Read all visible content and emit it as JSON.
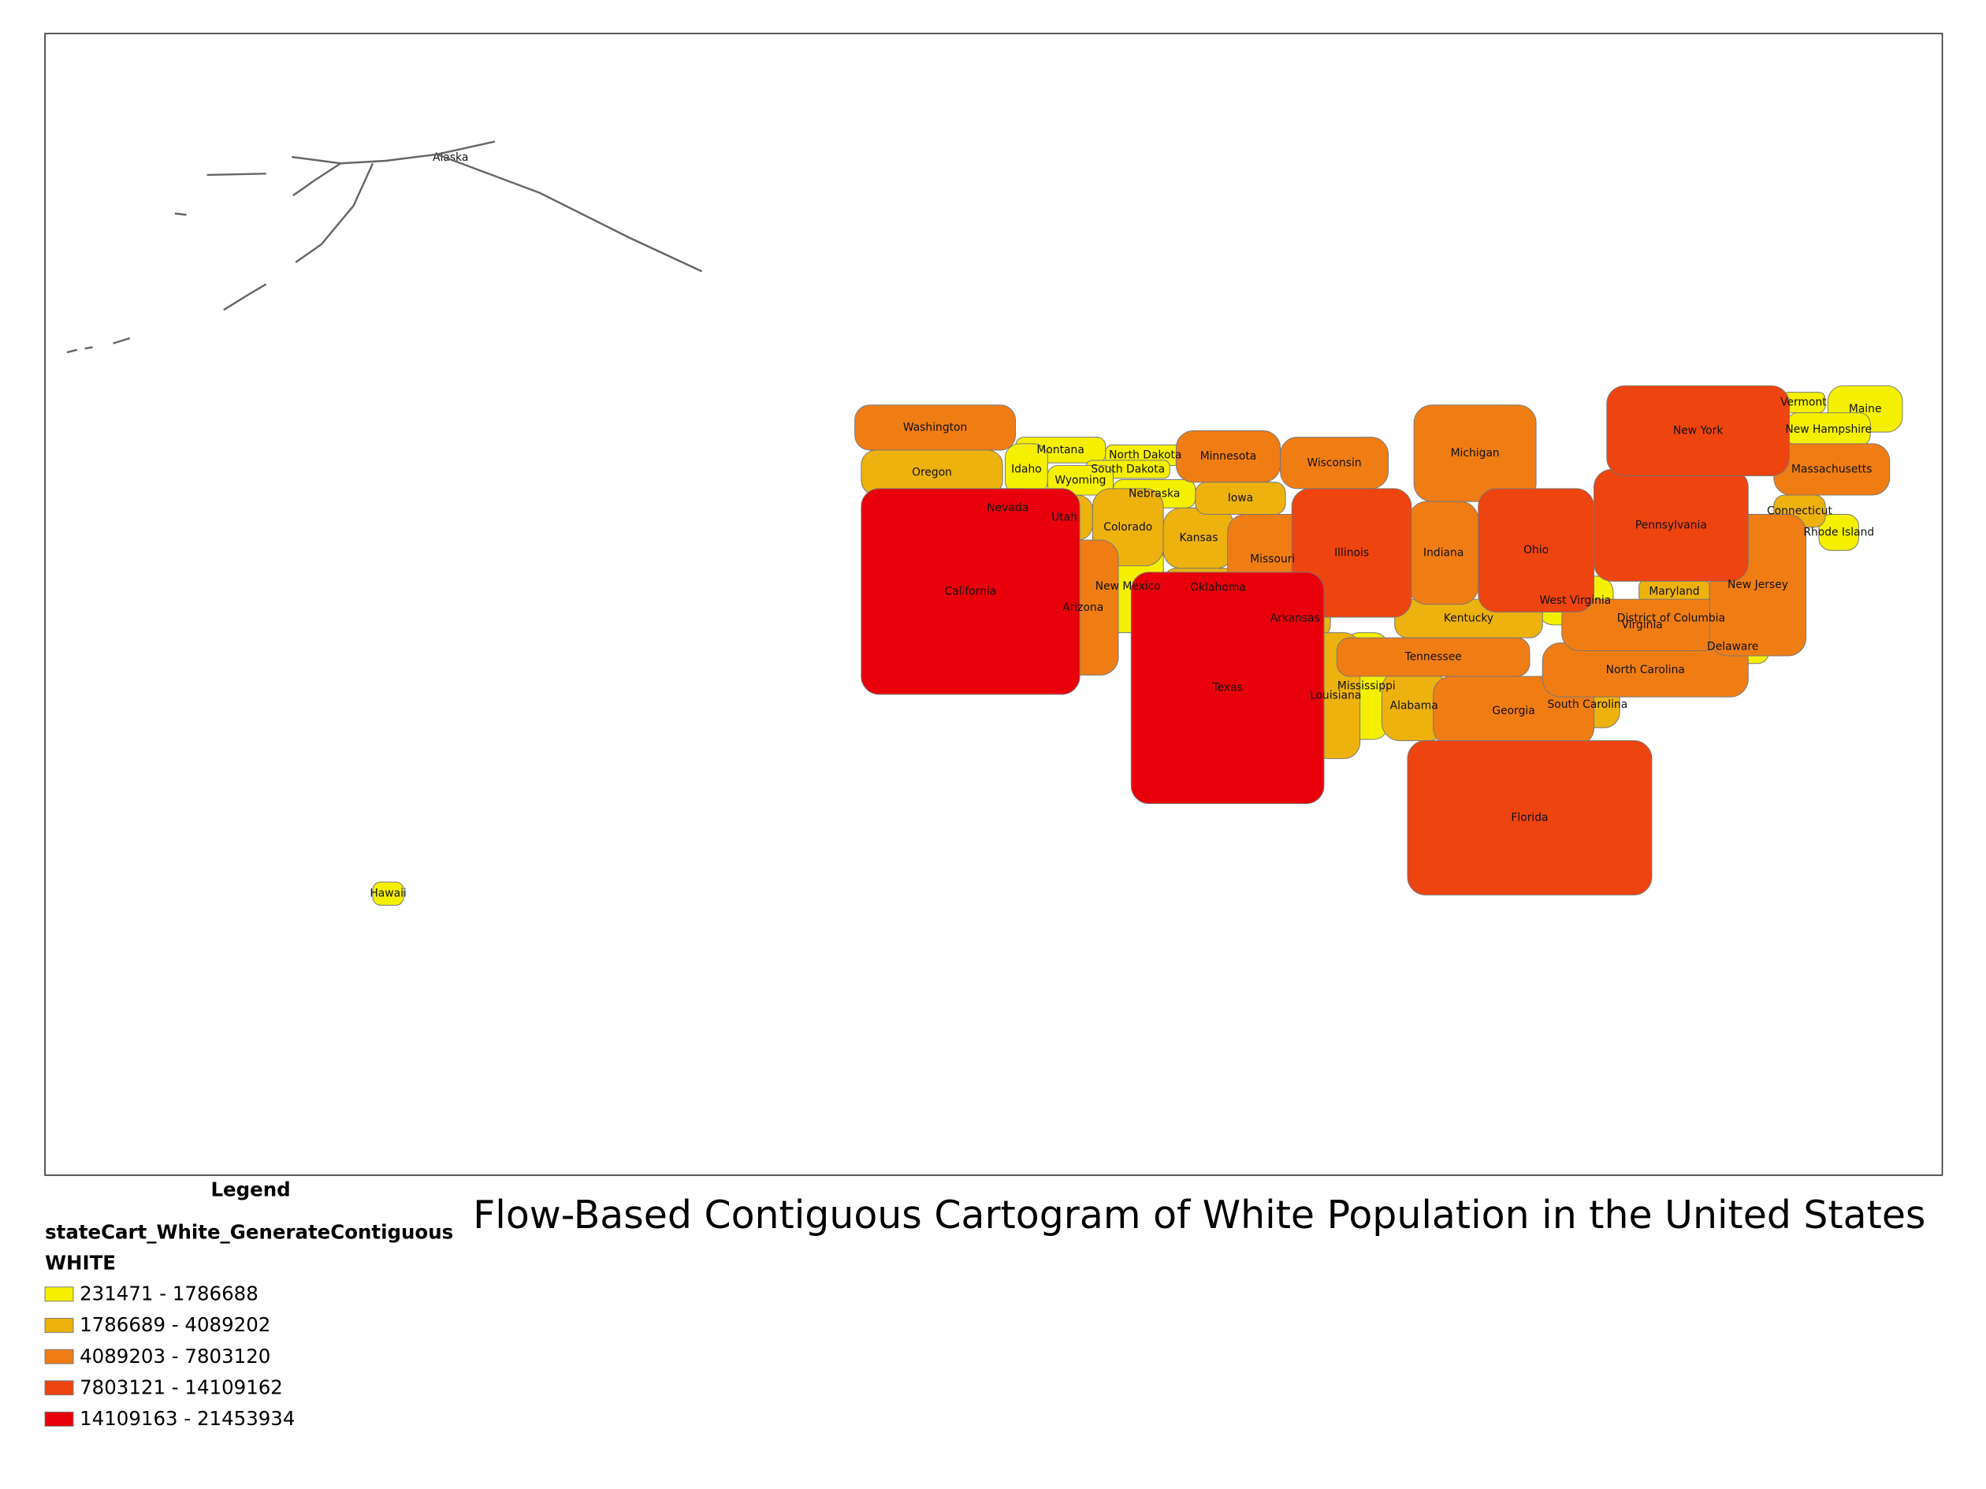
{
  "map": {
    "title": "Flow-Based Contiguous Cartogram of White Population in the United States",
    "legend": {
      "heading": "Legend",
      "layer": "stateCart_White_GenerateContiguous",
      "field": "WHITE",
      "classes": [
        {
          "label": "231471 - 1786688",
          "color": "#f5f000",
          "states": [
            "Alaska",
            "Hawaii",
            "Montana",
            "Idaho",
            "North Dakota",
            "South Dakota",
            "Wyoming",
            "Nebraska",
            "Nevada",
            "New Mexico",
            "West Virginia",
            "Mississippi",
            "Vermont",
            "Maine",
            "New Hampshire",
            "Rhode Island",
            "Delaware",
            "District of Columbia"
          ]
        },
        {
          "label": "1786689 - 4089202",
          "color": "#edb20e",
          "states": [
            "Oregon",
            "Utah",
            "Colorado",
            "Kansas",
            "Iowa",
            "Oklahoma",
            "Arkansas",
            "Kentucky",
            "Louisiana",
            "Alabama",
            "Connecticut",
            "Maryland",
            "South Carolina"
          ]
        },
        {
          "label": "4089203 - 7803120",
          "color": "#f07d14",
          "states": [
            "Washington",
            "Minnesota",
            "Wisconsin",
            "Michigan",
            "Indiana",
            "Missouri",
            "Arizona",
            "Tennessee",
            "Georgia",
            "North Carolina",
            "Virginia",
            "Massachusetts",
            "New Jersey"
          ]
        },
        {
          "label": "7803121 - 14109162",
          "color": "#ee4410",
          "states": [
            "Illinois",
            "Ohio",
            "Pennsylvania",
            "New York",
            "Florida"
          ]
        },
        {
          "label": "14109163 - 21453934",
          "color": "#e8000b",
          "states": [
            "California",
            "Texas"
          ]
        }
      ]
    }
  }
}
